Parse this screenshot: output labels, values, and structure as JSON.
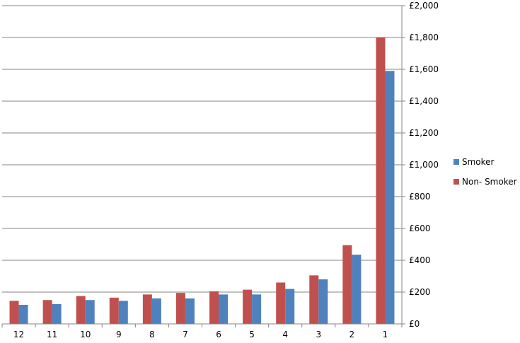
{
  "chart_data": {
    "type": "bar",
    "categories": [
      "12",
      "11",
      "10",
      "9",
      "8",
      "7",
      "6",
      "5",
      "4",
      "3",
      "2",
      "1"
    ],
    "series": [
      {
        "name": "Non- Smoker",
        "color": "#C0504D",
        "values": [
          145,
          150,
          175,
          165,
          185,
          195,
          205,
          215,
          260,
          305,
          495,
          1800
        ]
      },
      {
        "name": "Smoker",
        "color": "#4F81BD",
        "values": [
          120,
          125,
          150,
          145,
          160,
          160,
          185,
          185,
          220,
          280,
          435,
          1590
        ]
      }
    ],
    "legend_order": [
      "Smoker",
      "Non- Smoker"
    ],
    "y_ticks": [
      "£0",
      "£200",
      "£400",
      "£600",
      "£800",
      "£1,000",
      "£1,200",
      "£1,400",
      "£1,600",
      "£1,800",
      "£2,000"
    ],
    "y_tick_values": [
      0,
      200,
      400,
      600,
      800,
      1000,
      1200,
      1400,
      1600,
      1800,
      2000
    ],
    "ylim": [
      0,
      2000
    ],
    "y_axis_side": "right",
    "grid": true,
    "legend_position": "right"
  }
}
